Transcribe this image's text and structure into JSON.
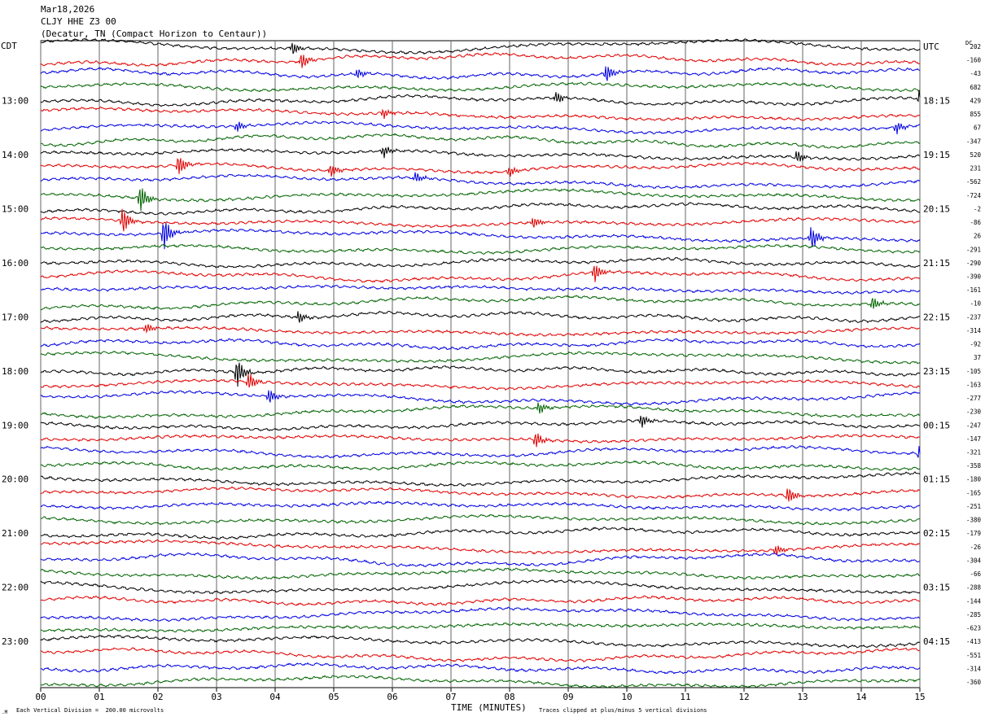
{
  "header": {
    "date": "Mar18,2026",
    "station": "CLJY HHE Z3 00",
    "location": "(Decatur, TN (Compact Horizon to Centaur))"
  },
  "chart_data": {
    "type": "line",
    "title": "",
    "xlabel": "TIME (MINUTES)",
    "left_axis_label": "CDT",
    "right_axis_label": "UTC",
    "dc_label": "DC",
    "x_ticks": [
      "00",
      "01",
      "02",
      "03",
      "04",
      "05",
      "06",
      "07",
      "08",
      "09",
      "10",
      "11",
      "12",
      "13",
      "14",
      "15"
    ],
    "xlim": [
      0,
      15
    ],
    "trace_count": 48,
    "trace_colors": [
      "#000000",
      "#e00000",
      "#0000e0",
      "#006400"
    ],
    "left_time_labels": [
      {
        "trace": 4,
        "label": "13:00"
      },
      {
        "trace": 8,
        "label": "14:00"
      },
      {
        "trace": 12,
        "label": "15:00"
      },
      {
        "trace": 16,
        "label": "16:00"
      },
      {
        "trace": 20,
        "label": "17:00"
      },
      {
        "trace": 24,
        "label": "18:00"
      },
      {
        "trace": 28,
        "label": "19:00"
      },
      {
        "trace": 32,
        "label": "20:00"
      },
      {
        "trace": 36,
        "label": "21:00"
      },
      {
        "trace": 40,
        "label": "22:00"
      },
      {
        "trace": 44,
        "label": "23:00"
      }
    ],
    "right_time_labels": [
      {
        "trace": 0,
        "label": "UTC"
      },
      {
        "trace": 4,
        "label": "18:15"
      },
      {
        "trace": 8,
        "label": "19:15"
      },
      {
        "trace": 12,
        "label": "20:15"
      },
      {
        "trace": 16,
        "label": "21:15"
      },
      {
        "trace": 20,
        "label": "22:15"
      },
      {
        "trace": 24,
        "label": "23:15"
      },
      {
        "trace": 28,
        "label": "00:15"
      },
      {
        "trace": 32,
        "label": "01:15"
      },
      {
        "trace": 36,
        "label": "02:15"
      },
      {
        "trace": 40,
        "label": "03:15"
      },
      {
        "trace": 44,
        "label": "04:15"
      }
    ],
    "dc_offsets": [
      "202",
      "-160",
      "-43",
      "682",
      "429",
      "855",
      "67",
      "-347",
      "520",
      "231",
      "-562",
      "-724",
      "-2",
      "-86",
      "26",
      "-291",
      "-290",
      "-390",
      "-161",
      "-10",
      "-237",
      "-314",
      "-92",
      "37",
      "-105",
      "-163",
      "-277",
      "-230",
      "-247",
      "-147",
      "-321",
      "-358",
      "-180",
      "-165",
      "-251",
      "-380",
      "-179",
      "-26",
      "-304",
      "-66",
      "-288",
      "-144",
      "-285",
      "-623",
      "-413",
      "-551",
      "-314",
      "-360"
    ],
    "events": [
      {
        "trace": 1,
        "minute": 4.45,
        "amp": 11,
        "color": "#e00000"
      },
      {
        "trace": 0,
        "minute": 4.3,
        "amp": 8,
        "color": "#000000"
      },
      {
        "trace": 2,
        "minute": 5.4,
        "amp": 7,
        "color": "#0000e0"
      },
      {
        "trace": 2,
        "minute": 9.65,
        "amp": 12,
        "color": "#0000e0"
      },
      {
        "trace": 4,
        "minute": 8.8,
        "amp": 8,
        "color": "#000000"
      },
      {
        "trace": 4,
        "minute": 15.0,
        "amp": 14,
        "color": "#e00000"
      },
      {
        "trace": 5,
        "minute": 5.85,
        "amp": 7,
        "color": "#e00000"
      },
      {
        "trace": 6,
        "minute": 14.6,
        "amp": 8,
        "color": "#0000e0"
      },
      {
        "trace": 6,
        "minute": 3.35,
        "amp": 7,
        "color": "#0000e0"
      },
      {
        "trace": 8,
        "minute": 12.9,
        "amp": 8,
        "color": "#000000"
      },
      {
        "trace": 8,
        "minute": 5.85,
        "amp": 8,
        "color": "#000000"
      },
      {
        "trace": 9,
        "minute": 2.35,
        "amp": 14,
        "color": "#e00000"
      },
      {
        "trace": 9,
        "minute": 4.95,
        "amp": 9,
        "color": "#e00000"
      },
      {
        "trace": 9,
        "minute": 8.0,
        "amp": 7,
        "color": "#e00000"
      },
      {
        "trace": 10,
        "minute": 6.4,
        "amp": 7,
        "color": "#0000e0"
      },
      {
        "trace": 11,
        "minute": 1.7,
        "amp": 18,
        "color": "#006400"
      },
      {
        "trace": 13,
        "minute": 1.4,
        "amp": 18,
        "color": "#0000e0"
      },
      {
        "trace": 13,
        "minute": 8.4,
        "amp": 8,
        "color": "#e00000"
      },
      {
        "trace": 14,
        "minute": 2.1,
        "amp": 22,
        "color": "#006400"
      },
      {
        "trace": 14,
        "minute": 13.15,
        "amp": 16,
        "color": "#006400"
      },
      {
        "trace": 17,
        "minute": 9.45,
        "amp": 13,
        "color": "#e00000"
      },
      {
        "trace": 19,
        "minute": 14.2,
        "amp": 9,
        "color": "#006400"
      },
      {
        "trace": 20,
        "minute": 4.4,
        "amp": 9,
        "color": "#000000"
      },
      {
        "trace": 21,
        "minute": 1.8,
        "amp": 7,
        "color": "#e00000"
      },
      {
        "trace": 24,
        "minute": 3.35,
        "amp": 20,
        "color": "#000000"
      },
      {
        "trace": 25,
        "minute": 3.55,
        "amp": 12,
        "color": "#0000e0"
      },
      {
        "trace": 26,
        "minute": 3.9,
        "amp": 10,
        "color": "#006400"
      },
      {
        "trace": 27,
        "minute": 8.5,
        "amp": 8,
        "color": "#006400"
      },
      {
        "trace": 28,
        "minute": 10.25,
        "amp": 9,
        "color": "#000000"
      },
      {
        "trace": 29,
        "minute": 8.45,
        "amp": 11,
        "color": "#e00000"
      },
      {
        "trace": 30,
        "minute": 15.0,
        "amp": 14,
        "color": "#0000e0"
      },
      {
        "trace": 33,
        "minute": 12.75,
        "amp": 11,
        "color": "#e00000"
      },
      {
        "trace": 37,
        "minute": 12.55,
        "amp": 7,
        "color": "#e00000"
      }
    ],
    "footer_left": "Each Vertical Division =  200.00 microvolts",
    "footer_right": "Traces clipped at plus/minus 5 vertical divisions"
  }
}
